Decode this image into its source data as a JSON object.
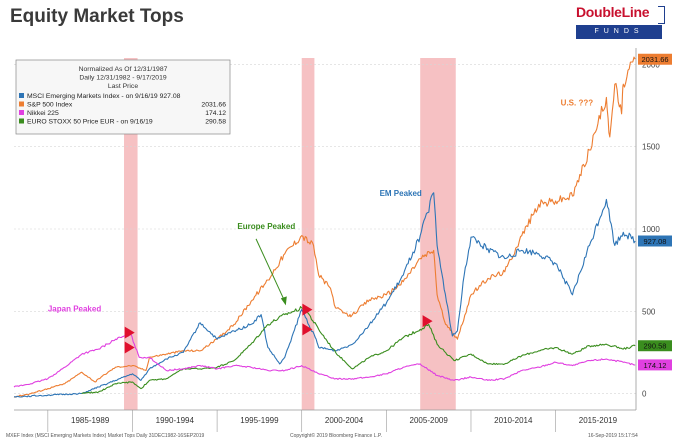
{
  "header": {
    "title": "Equity Market Tops",
    "logo_brand": "DoubleLine",
    "logo_tagline": "FUNDS"
  },
  "footer": {
    "left": "MXEF Index (MSCI Emerging Markets Index) Market Tops  Daily 31DEC1982-16SEP2019",
    "center": "Copyright© 2019 Bloomberg Finance L.P.",
    "right": "16-Sep-2019 15:17:54"
  },
  "chart_data": {
    "type": "line",
    "legend": {
      "placement": "top-left",
      "header": [
        "Normalized As Of 12/31/1987",
        "Daily 12/31/1982 - 9/17/2019",
        "Last Price"
      ],
      "entries": [
        {
          "label": "MSCI Emerging Markets Index -  on 9/16/19 927.08",
          "value": "",
          "color": "#2e75b6"
        },
        {
          "label": "S&P 500 Index",
          "value": "2031.66",
          "color": "#ed7d31"
        },
        {
          "label": "Nikkei 225",
          "value": "174.12",
          "color": "#e040e0"
        },
        {
          "label": "EURO STOXX 50 Price EUR -  on 9/16/19",
          "value": "290.58",
          "color": "#3a8d1e"
        }
      ]
    },
    "x_axis": {
      "range": [
        1983,
        2019.75
      ],
      "period_labels": [
        {
          "label": "1985-1989",
          "center": 1987.5
        },
        {
          "label": "1990-1994",
          "center": 1992.5
        },
        {
          "label": "1995-1999",
          "center": 1997.5
        },
        {
          "label": "2000-2004",
          "center": 2002.5
        },
        {
          "label": "2005-2009",
          "center": 2007.5
        },
        {
          "label": "2010-2014",
          "center": 2012.5
        },
        {
          "label": "2015-2019",
          "center": 2017.5
        }
      ]
    },
    "y_axis": {
      "range": [
        -100,
        2100
      ],
      "ticks": [
        "0",
        "500",
        "1000",
        "1500",
        "2000"
      ],
      "tick_values": [
        0,
        500,
        1000,
        1500,
        2000
      ],
      "side": "right",
      "grid": true
    },
    "shaded_periods": [
      {
        "start": 1989.5,
        "end": 1990.3
      },
      {
        "start": 2000.0,
        "end": 2000.75
      },
      {
        "start": 2007.0,
        "end": 2009.1
      }
    ],
    "peak_markers": [
      {
        "x": 1989.6,
        "y": 370,
        "color": "#e0102e"
      },
      {
        "x": 1989.6,
        "y": 280,
        "color": "#e0102e"
      },
      {
        "x": 2000.1,
        "y": 510,
        "color": "#e0102e"
      },
      {
        "x": 2000.1,
        "y": 390,
        "color": "#e0102e"
      },
      {
        "x": 2007.2,
        "y": 440,
        "color": "#e0102e"
      }
    ],
    "annotations": [
      {
        "text": "Japan Peaked",
        "x": 1985.0,
        "y": 500,
        "color": "#e040e0"
      },
      {
        "text": "Europe Peaked",
        "x": 1996.2,
        "y": 1000,
        "color": "#3a8d1e"
      },
      {
        "text": "EM Peaked",
        "x": 2004.6,
        "y": 1200,
        "color": "#2e75b6"
      },
      {
        "text": "U.S. ???",
        "x": 2015.3,
        "y": 1750,
        "color": "#ed7d31"
      }
    ],
    "last_value_labels": [
      {
        "text": "2031.66",
        "value": 2031.66,
        "color": "#ed7d31"
      },
      {
        "text": "927.08",
        "value": 927.08,
        "color": "#2e75b6"
      },
      {
        "text": "290.58",
        "value": 290.58,
        "color": "#3a8d1e"
      },
      {
        "text": "174.12",
        "value": 174.12,
        "color": "#e040e0"
      }
    ],
    "series": [
      {
        "name": "S&P 500 Index",
        "color": "#ed7d31",
        "x": [
          1983,
          1984,
          1985,
          1986,
          1987,
          1987.8,
          1988,
          1989,
          1990,
          1990.8,
          1991,
          1992,
          1993,
          1994,
          1995,
          1996,
          1997,
          1998,
          1999,
          2000,
          2000.7,
          2001,
          2001.7,
          2002,
          2002.8,
          2003,
          2004,
          2005,
          2006,
          2007,
          2007.8,
          2008,
          2008.5,
          2009.2,
          2010,
          2011,
          2012,
          2013,
          2014,
          2015,
          2016,
          2017,
          2017.5,
          2018,
          2018.2,
          2018.5,
          2018.9,
          2019,
          2019.7
        ],
        "y": [
          -20,
          0,
          30,
          60,
          130,
          70,
          90,
          160,
          170,
          140,
          220,
          240,
          260,
          260,
          330,
          420,
          560,
          690,
          850,
          960,
          900,
          720,
          640,
          520,
          470,
          480,
          570,
          600,
          680,
          820,
          870,
          600,
          420,
          330,
          600,
          700,
          740,
          960,
          1150,
          1170,
          1200,
          1480,
          1640,
          1800,
          1560,
          1880,
          1700,
          1880,
          2031.66
        ]
      },
      {
        "name": "MSCI Emerging Markets Index",
        "color": "#2e75b6",
        "x": [
          1983,
          1985,
          1987,
          1988,
          1989,
          1990,
          1990.5,
          1991,
          1992,
          1993,
          1994,
          1995,
          1996,
          1997,
          1997.6,
          1998,
          1998.7,
          1999,
          2000,
          2000.8,
          2001,
          2002,
          2003,
          2004,
          2005,
          2006,
          2007,
          2007.8,
          2008,
          2008.9,
          2009.2,
          2009.6,
          2010,
          2011,
          2012,
          2013,
          2014,
          2015,
          2016,
          2017,
          2018,
          2018.5,
          2019,
          2019.7
        ],
        "y": [
          -20,
          -10,
          0,
          40,
          80,
          120,
          80,
          150,
          210,
          250,
          430,
          330,
          380,
          420,
          480,
          280,
          180,
          220,
          510,
          340,
          280,
          260,
          300,
          420,
          550,
          720,
          960,
          1220,
          900,
          350,
          380,
          720,
          950,
          880,
          820,
          870,
          850,
          790,
          600,
          900,
          1180,
          900,
          980,
          927.08
        ]
      },
      {
        "name": "EURO STOXX 50 Price EUR",
        "color": "#3a8d1e",
        "x": [
          1987,
          1988,
          1989,
          1990,
          1990.5,
          1991,
          1992,
          1993,
          1994,
          1995,
          1996,
          1997,
          1998,
          1999,
          2000,
          2000.3,
          2001,
          2002,
          2003,
          2004,
          2005,
          2006,
          2007,
          2007.5,
          2008,
          2009,
          2010,
          2011,
          2012,
          2013,
          2014,
          2015,
          2016,
          2017,
          2018,
          2019,
          2019.7
        ],
        "y": [
          0,
          10,
          60,
          70,
          30,
          80,
          90,
          150,
          150,
          160,
          200,
          300,
          420,
          480,
          520,
          500,
          390,
          250,
          150,
          220,
          260,
          340,
          390,
          420,
          300,
          200,
          240,
          180,
          180,
          230,
          260,
          280,
          240,
          290,
          300,
          270,
          290.58
        ]
      },
      {
        "name": "Nikkei 225",
        "color": "#e040e0",
        "x": [
          1983,
          1984,
          1985,
          1986,
          1987,
          1988,
          1989,
          1989.9,
          1990.4,
          1991,
          1992,
          1993,
          1994,
          1995,
          1996,
          1997,
          1998,
          1999,
          2000,
          2001,
          2002,
          2003,
          2004,
          2005,
          2006,
          2007,
          2008,
          2009,
          2010,
          2011,
          2012,
          2013,
          2014,
          2015,
          2016,
          2017,
          2018,
          2019,
          2019.7
        ],
        "y": [
          40,
          60,
          90,
          160,
          240,
          270,
          330,
          360,
          220,
          220,
          140,
          150,
          170,
          150,
          170,
          160,
          140,
          140,
          170,
          120,
          90,
          90,
          100,
          120,
          160,
          180,
          110,
          80,
          100,
          80,
          90,
          140,
          160,
          190,
          170,
          200,
          210,
          190,
          174.12
        ]
      }
    ]
  }
}
